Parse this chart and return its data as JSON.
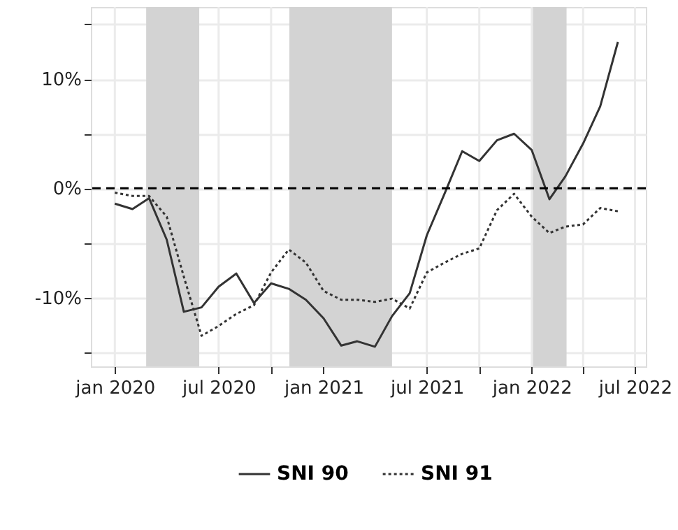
{
  "chart_data": {
    "type": "line",
    "x": [
      "2020-01",
      "2020-02",
      "2020-03",
      "2020-04",
      "2020-05",
      "2020-06",
      "2020-07",
      "2020-08",
      "2020-09",
      "2020-10",
      "2020-11",
      "2020-12",
      "2021-01",
      "2021-02",
      "2021-03",
      "2021-04",
      "2021-05",
      "2021-06",
      "2021-07",
      "2021-08",
      "2021-09",
      "2021-10",
      "2021-11",
      "2021-12",
      "2022-01",
      "2022-02",
      "2022-03",
      "2022-04",
      "2022-05",
      "2022-06"
    ],
    "series": [
      {
        "name": "SNI 90",
        "color": "#333333",
        "line_style": "solid",
        "values": [
          -1.4,
          -1.9,
          -0.9,
          -4.7,
          -11.3,
          -10.9,
          -9.0,
          -7.8,
          -10.5,
          -8.7,
          -9.2,
          -10.2,
          -11.9,
          -14.4,
          -14.0,
          -14.5,
          -11.7,
          -9.6,
          -4.3,
          -0.5,
          3.4,
          2.5,
          4.4,
          5.0,
          3.5,
          -1.0,
          1.1,
          4.1,
          7.5,
          13.4
        ]
      },
      {
        "name": "SNI 91",
        "color": "#333333",
        "line_style": "dotted",
        "values": [
          -0.4,
          -0.7,
          -0.7,
          -2.6,
          -8.1,
          -13.5,
          -12.6,
          -11.5,
          -10.7,
          -7.7,
          -5.6,
          -6.8,
          -9.4,
          -10.2,
          -10.2,
          -10.4,
          -10.1,
          -11.0,
          -7.7,
          -6.8,
          -6.0,
          -5.5,
          -2.0,
          -0.5,
          -2.6,
          -4.1,
          -3.5,
          -3.3,
          -1.8,
          -2.1
        ]
      }
    ],
    "xlim": [
      "2019-11-20",
      "2022-07-20"
    ],
    "xticks": [
      {
        "value": "2020-01",
        "label": "jan 2020"
      },
      {
        "value": "2020-07",
        "label": "jul 2020"
      },
      {
        "value": "2020-10",
        "label": null
      },
      {
        "value": "2021-01",
        "label": "jan 2021"
      },
      {
        "value": "2021-07",
        "label": "jul 2021"
      },
      {
        "value": "2021-10",
        "label": null
      },
      {
        "value": "2022-01",
        "label": "jan 2022"
      },
      {
        "value": "2022-04",
        "label": null
      },
      {
        "value": "2022-07",
        "label": "jul 2022"
      }
    ],
    "ylim": [
      -16.3,
      16.6
    ],
    "yticks": [
      {
        "value": -15,
        "label": null
      },
      {
        "value": -10,
        "label": "-10%"
      },
      {
        "value": -5,
        "label": null
      },
      {
        "value": 0,
        "label": "0%"
      },
      {
        "value": 5,
        "label": null
      },
      {
        "value": 10,
        "label": "10%"
      },
      {
        "value": 15,
        "label": null
      }
    ],
    "bands": [
      {
        "axis": "x",
        "from": "2020-02-25",
        "to": "2020-05-28",
        "color": "#d3d3d3"
      },
      {
        "axis": "x",
        "from": "2020-11-02",
        "to": "2021-05-01",
        "color": "#d3d3d3"
      },
      {
        "axis": "x",
        "from": "2022-01-03",
        "to": "2022-03-03",
        "color": "#d3d3d3"
      }
    ],
    "ref_lines": [
      {
        "axis": "y",
        "value": 0,
        "color": "#000000",
        "line_style": "dashed"
      }
    ],
    "grid": true,
    "legend": "bottom",
    "marker": "none"
  }
}
